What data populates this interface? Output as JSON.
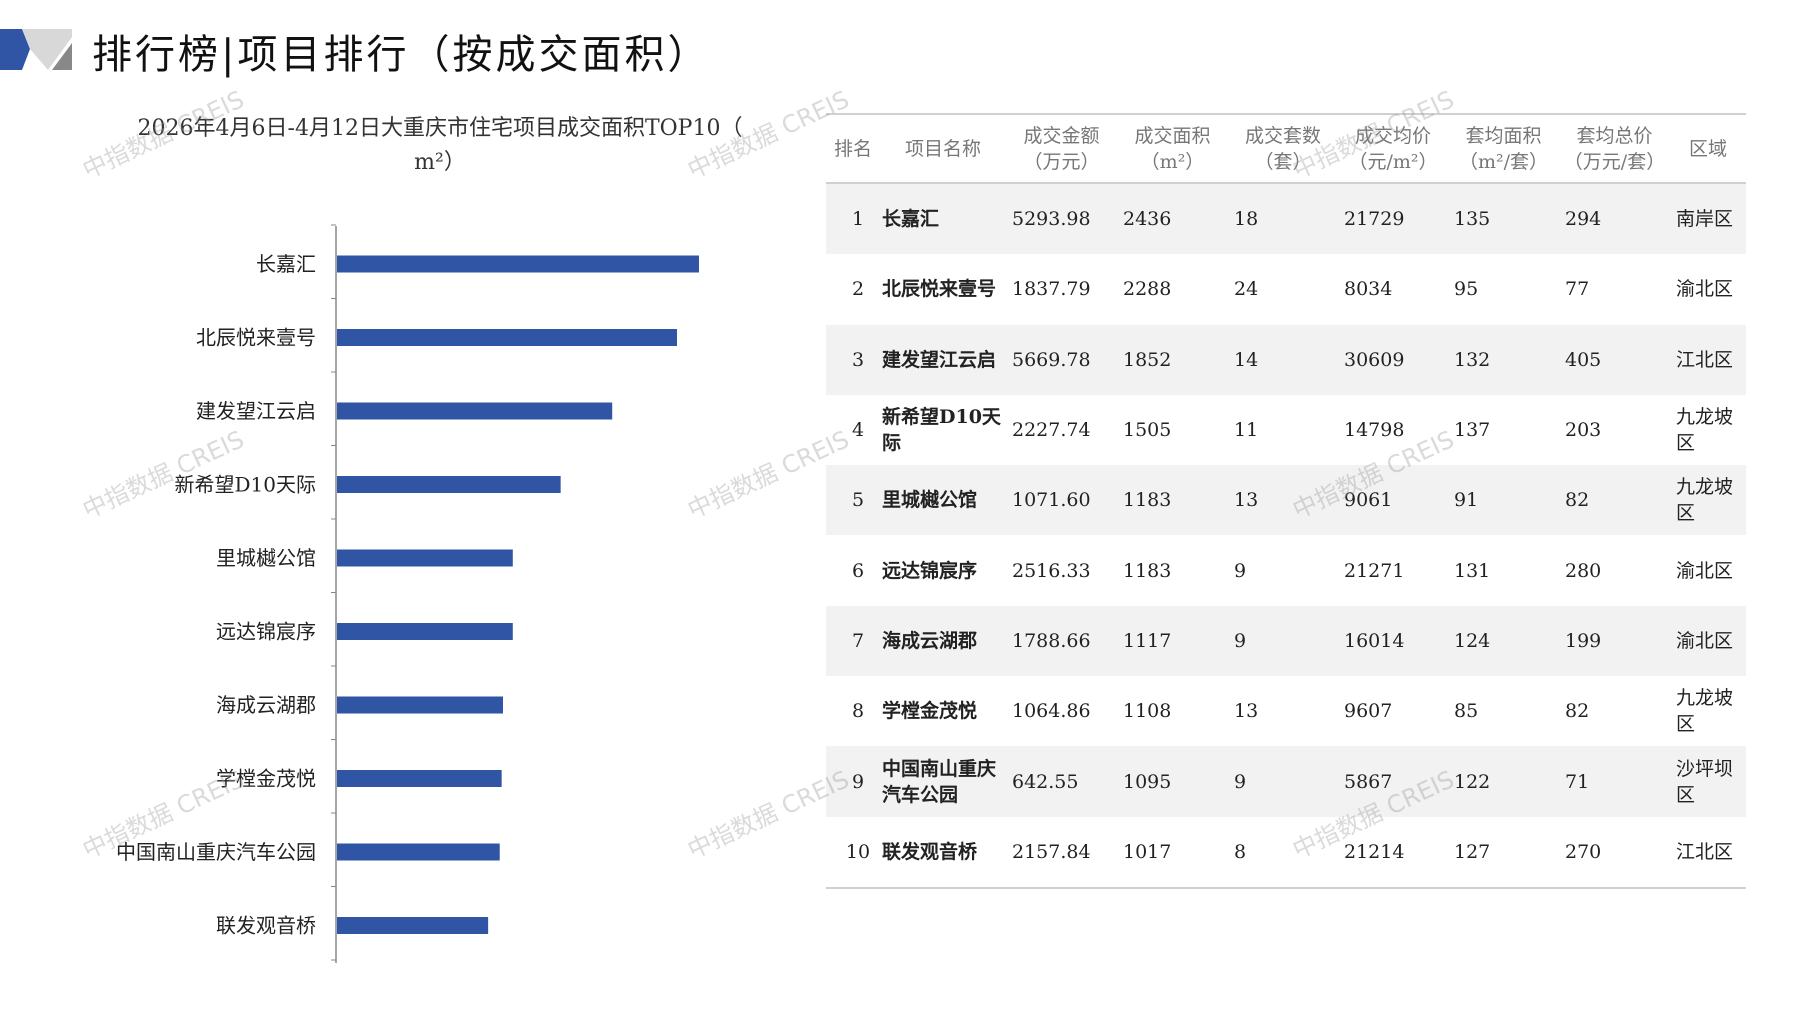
{
  "page_title": "排行榜|项目排行（按成交面积）",
  "watermark": "中指数据 CREIS",
  "colors": {
    "bar": "#2f55a4",
    "logo_blue": "#2f55a4",
    "logo_gray": "#b0b0b0",
    "row_alt": "#f2f2f2"
  },
  "chart_data": {
    "type": "bar",
    "orientation": "horizontal",
    "title_line1": "2026年4月6日-4月12日大重庆市住宅项目成交面积TOP10（",
    "title_line2": "m²）",
    "categories": [
      "长嘉汇",
      "北辰悦来壹号",
      "建发望江云启",
      "新希望D10天际",
      "里城樾公馆",
      "远达锦宸序",
      "海成云湖郡",
      "学樘金茂悦",
      "中国南山重庆汽车公园",
      "联发观音桥"
    ],
    "values": [
      2436,
      2288,
      1852,
      1505,
      1183,
      1183,
      1117,
      1108,
      1095,
      1017
    ],
    "xlim": [
      0,
      2436
    ],
    "grid": false
  },
  "table": {
    "headers": [
      [
        "排名",
        ""
      ],
      [
        "项目名称",
        ""
      ],
      [
        "成交金额",
        "（万元）"
      ],
      [
        "成交面积",
        "（m²）"
      ],
      [
        "成交套数",
        "（套）"
      ],
      [
        "成交均价",
        "（元/m²）"
      ],
      [
        "套均面积",
        "（m²/套）"
      ],
      [
        "套均总价",
        "（万元/套）"
      ],
      [
        "区域",
        ""
      ]
    ],
    "rows": [
      [
        "1",
        "长嘉汇",
        "5293.98",
        "2436",
        "18",
        "21729",
        "135",
        "294",
        "南岸区"
      ],
      [
        "2",
        "北辰悦来壹号",
        "1837.79",
        "2288",
        "24",
        "8034",
        "95",
        "77",
        "渝北区"
      ],
      [
        "3",
        "建发望江云启",
        "5669.78",
        "1852",
        "14",
        "30609",
        "132",
        "405",
        "江北区"
      ],
      [
        "4",
        "新希望D10天际",
        "2227.74",
        "1505",
        "11",
        "14798",
        "137",
        "203",
        "九龙坡区"
      ],
      [
        "5",
        "里城樾公馆",
        "1071.60",
        "1183",
        "13",
        "9061",
        "91",
        "82",
        "九龙坡区"
      ],
      [
        "6",
        "远达锦宸序",
        "2516.33",
        "1183",
        "9",
        "21271",
        "131",
        "280",
        "渝北区"
      ],
      [
        "7",
        "海成云湖郡",
        "1788.66",
        "1117",
        "9",
        "16014",
        "124",
        "199",
        "渝北区"
      ],
      [
        "8",
        "学樘金茂悦",
        "1064.86",
        "1108",
        "13",
        "9607",
        "85",
        "82",
        "九龙坡区"
      ],
      [
        "9",
        "中国南山重庆汽车公园",
        "642.55",
        "1095",
        "9",
        "5867",
        "122",
        "71",
        "沙坪坝区"
      ],
      [
        "10",
        "联发观音桥",
        "2157.84",
        "1017",
        "8",
        "21214",
        "127",
        "270",
        "江北区"
      ]
    ]
  }
}
